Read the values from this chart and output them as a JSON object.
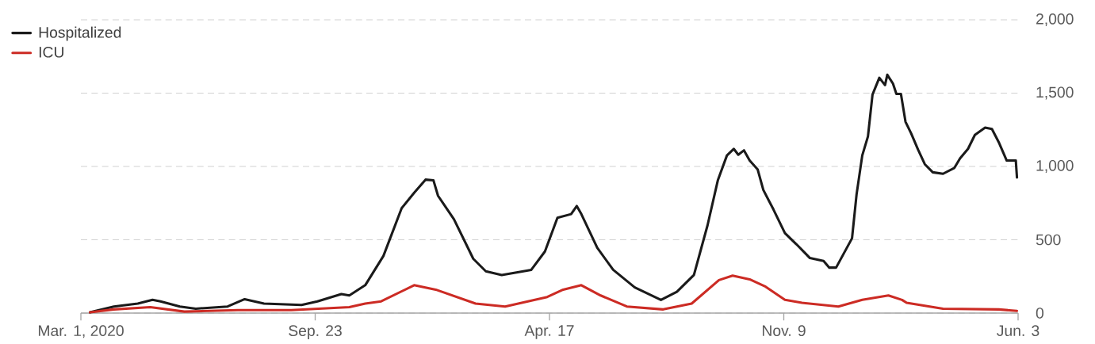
{
  "chart_data": {
    "type": "line",
    "legend": "top left",
    "grid": "y",
    "line_style": "solid",
    "xlim": [
      "2020-03-01",
      "2022-06-03"
    ],
    "xticks": [
      {
        "value": "2020-03-01",
        "label": "Mar. 1, 2020"
      },
      {
        "value": "2020-09-23",
        "label": "Sep. 23"
      },
      {
        "value": "2021-04-17",
        "label": "Apr. 17"
      },
      {
        "value": "2021-11-09",
        "label": "Nov. 9"
      },
      {
        "value": "2022-06-03",
        "label": "Jun. 3"
      }
    ],
    "ylim": [
      0,
      2000
    ],
    "yticks": [
      0,
      500,
      {
        "value": 1000,
        "label": "1,000"
      },
      {
        "value": 1500,
        "label": "1,500"
      },
      {
        "value": 2000,
        "label": "2,000"
      }
    ],
    "series": [
      {
        "name": "Hospitalized",
        "color": "#1a1a1a",
        "x": [
          "2020-03-09",
          "2020-03-30",
          "2020-04-20",
          "2020-05-03",
          "2020-05-10",
          "2020-05-27",
          "2020-06-10",
          "2020-07-08",
          "2020-07-23",
          "2020-08-09",
          "2020-09-11",
          "2020-09-25",
          "2020-10-16",
          "2020-10-23",
          "2020-11-06",
          "2020-11-22",
          "2020-12-08",
          "2020-12-19",
          "2020-12-29",
          "2021-01-05",
          "2021-01-09",
          "2021-01-23",
          "2021-02-09",
          "2021-02-20",
          "2021-03-06",
          "2021-04-01",
          "2021-04-13",
          "2021-04-24",
          "2021-05-06",
          "2021-05-11",
          "2021-05-15",
          "2021-05-29",
          "2021-06-12",
          "2021-07-01",
          "2021-07-24",
          "2021-08-07",
          "2021-08-22",
          "2021-09-03",
          "2021-09-12",
          "2021-09-20",
          "2021-09-26",
          "2021-09-30",
          "2021-10-05",
          "2021-10-10",
          "2021-10-17",
          "2021-10-22",
          "2021-10-31",
          "2021-11-10",
          "2021-11-20",
          "2021-12-02",
          "2021-12-14",
          "2021-12-19",
          "2021-12-25",
          "2022-01-01",
          "2022-01-08",
          "2022-01-12",
          "2022-01-17",
          "2022-01-22",
          "2022-01-26",
          "2022-02-01",
          "2022-02-06",
          "2022-02-08",
          "2022-02-13",
          "2022-02-16",
          "2022-02-20",
          "2022-02-24",
          "2022-03-01",
          "2022-03-07",
          "2022-03-13",
          "2022-03-20",
          "2022-03-29",
          "2022-04-08",
          "2022-04-13",
          "2022-04-20",
          "2022-04-26",
          "2022-05-05",
          "2022-05-11",
          "2022-05-17",
          "2022-05-24",
          "2022-06-01",
          "2022-06-02"
        ],
        "values": [
          5,
          45,
          65,
          90,
          80,
          45,
          30,
          45,
          95,
          65,
          55,
          80,
          130,
          120,
          190,
          390,
          715,
          820,
          910,
          905,
          800,
          640,
          370,
          285,
          260,
          295,
          420,
          650,
          675,
          730,
          675,
          445,
          295,
          175,
          90,
          145,
          260,
          600,
          905,
          1075,
          1120,
          1080,
          1110,
          1040,
          980,
          840,
          705,
          545,
          470,
          375,
          355,
          310,
          310,
          410,
          510,
          810,
          1075,
          1205,
          1490,
          1605,
          1555,
          1625,
          1565,
          1495,
          1495,
          1305,
          1225,
          1115,
          1015,
          960,
          950,
          990,
          1055,
          1120,
          1215,
          1265,
          1255,
          1165,
          1040,
          1040,
          925
        ]
      },
      {
        "name": "ICU",
        "color": "#cc2b24",
        "x": [
          "2020-03-09",
          "2020-03-30",
          "2020-05-01",
          "2020-05-31",
          "2020-07-17",
          "2020-09-02",
          "2020-10-23",
          "2020-11-06",
          "2020-11-20",
          "2020-12-19",
          "2021-01-07",
          "2021-02-11",
          "2021-03-09",
          "2021-04-15",
          "2021-04-29",
          "2021-05-15",
          "2021-06-01",
          "2021-06-24",
          "2021-07-26",
          "2021-08-20",
          "2021-09-13",
          "2021-09-25",
          "2021-10-10",
          "2021-10-24",
          "2021-11-10",
          "2021-11-25",
          "2021-12-27",
          "2022-01-17",
          "2022-02-09",
          "2022-02-21",
          "2022-02-25",
          "2022-03-29",
          "2022-05-17",
          "2022-06-02"
        ],
        "values": [
          5,
          25,
          40,
          10,
          20,
          20,
          40,
          65,
          80,
          190,
          160,
          65,
          45,
          110,
          160,
          190,
          120,
          45,
          25,
          65,
          225,
          255,
          230,
          180,
          90,
          70,
          45,
          90,
          120,
          90,
          70,
          30,
          25,
          15
        ]
      }
    ]
  }
}
